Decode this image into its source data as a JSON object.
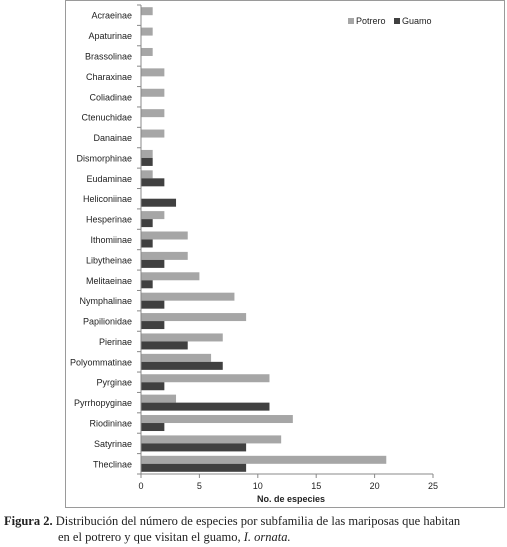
{
  "chart_data": {
    "type": "bar",
    "orientation": "horizontal",
    "categories": [
      "Acraeinae",
      "Apaturinae",
      "Brassolinae",
      "Charaxinae",
      "Coliadinae",
      "Ctenuchidae",
      "Danainae",
      "Dismorphinae",
      "Eudaminae",
      "Heliconiinae",
      "Hesperinae",
      "Ithomiinae",
      "Libytheinae",
      "Melitaeinae",
      "Nymphalinae",
      "Papilionidae",
      "Pierinae",
      "Polyommatinae",
      "Pyrginae",
      "Pyrrhopyginae",
      "Riodininae",
      "Satyrinae",
      "Theclinae"
    ],
    "series": [
      {
        "name": "Potrero",
        "color": "#a6a6a6",
        "values": [
          1,
          1,
          1,
          2,
          2,
          2,
          2,
          1,
          1,
          0,
          2,
          4,
          4,
          5,
          8,
          9,
          7,
          6,
          11,
          3,
          13,
          12,
          21
        ]
      },
      {
        "name": "Guamo",
        "color": "#404040",
        "values": [
          0,
          0,
          0,
          0,
          0,
          0,
          0,
          1,
          2,
          3,
          1,
          1,
          2,
          1,
          2,
          2,
          4,
          7,
          2,
          11,
          2,
          9,
          9
        ]
      }
    ],
    "xlabel": "No. de especies",
    "xlim": [
      0,
      25
    ],
    "xticks": [
      0,
      5,
      10,
      15,
      20,
      25
    ],
    "grid": false,
    "legend_position": "top-right"
  },
  "caption": {
    "label": "Figura 2.",
    "text_line1": "Distribución del número de especies por subfamilia de las mariposas que habitan",
    "text_line2": "en el potrero y que visitan el guamo,",
    "species": "I. ornata."
  }
}
